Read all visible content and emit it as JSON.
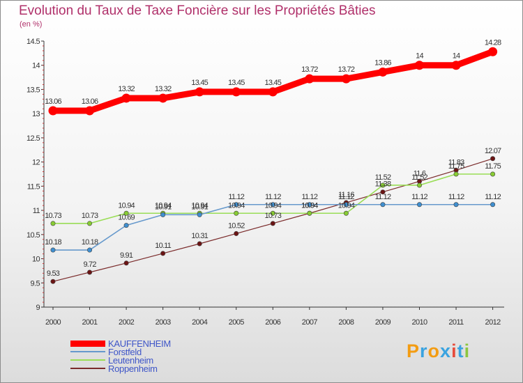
{
  "chart_data": {
    "type": "line",
    "title": "Evolution du Taux de Taxe Foncière sur les Propriétés Bâties",
    "ylabel": "(en %)",
    "xlabel": "",
    "ylim": [
      9,
      14.5
    ],
    "yticks": [
      "9",
      "9.5",
      "10",
      "10.5",
      "11",
      "11.5",
      "12",
      "12.5",
      "13",
      "13.5",
      "14",
      "14.5"
    ],
    "categories": [
      "2000",
      "2001",
      "2002",
      "2003",
      "2004",
      "2005",
      "2006",
      "2007",
      "2008",
      "2009",
      "2010",
      "2011",
      "2012"
    ],
    "series": [
      {
        "name": "KAUFFENHEIM",
        "color": "#ff0000",
        "values": [
          13.06,
          13.06,
          13.32,
          13.32,
          13.45,
          13.45,
          13.45,
          13.72,
          13.72,
          13.86,
          14,
          14,
          14.28
        ],
        "labels": [
          "13.06",
          "13.06",
          "13.32",
          "13.32",
          "13.45",
          "13.45",
          "13.45",
          "13.72",
          "13.72",
          "13.86",
          "14",
          "14",
          "14.28"
        ]
      },
      {
        "name": "Forstfeld",
        "color": "#6699cc",
        "values": [
          10.18,
          10.18,
          10.69,
          10.91,
          10.91,
          11.12,
          11.12,
          11.12,
          11.12,
          11.12,
          11.12,
          11.12,
          11.12
        ],
        "labels": [
          "10.18",
          "10.18",
          "10.69",
          "10.91",
          "10.91",
          "11.12",
          "11.12",
          "11.12",
          "11.12",
          "11.12",
          "11.12",
          "11.12",
          "11.12"
        ]
      },
      {
        "name": "Leutenheim",
        "color": "#99dd55",
        "values": [
          10.73,
          10.73,
          10.94,
          10.94,
          10.94,
          10.94,
          10.94,
          10.94,
          10.94,
          11.52,
          11.52,
          11.75,
          11.75
        ],
        "labels": [
          "10.73",
          "10.73",
          "10.94",
          "10.94",
          "10.94",
          "10.94",
          "10.94",
          "10.94",
          "10.94",
          "11.52",
          "11.52",
          "11.75",
          "11.75"
        ]
      },
      {
        "name": "Roppenheim",
        "color": "#7a2a2a",
        "values": [
          9.53,
          9.72,
          9.91,
          10.11,
          10.31,
          10.52,
          10.73,
          10.94,
          11.16,
          11.38,
          11.6,
          11.83,
          12.07
        ],
        "labels": [
          "9.53",
          "9.72",
          "9.91",
          "10.11",
          "10.31",
          "10.52",
          "10.73",
          "10.94",
          "11.16",
          "11.38",
          "11.6",
          "11.83",
          "12.07"
        ]
      }
    ],
    "grid": false,
    "legend_position": "bottom-left"
  },
  "brand": {
    "letters": [
      "P",
      "r",
      "o",
      "x",
      "i",
      "t",
      "i"
    ],
    "colors": [
      "#f39c12",
      "#3aa3e0",
      "#f39c12",
      "#3aa3e0",
      "#e74c3c",
      "#3aa3e0",
      "#8cc63f"
    ]
  }
}
